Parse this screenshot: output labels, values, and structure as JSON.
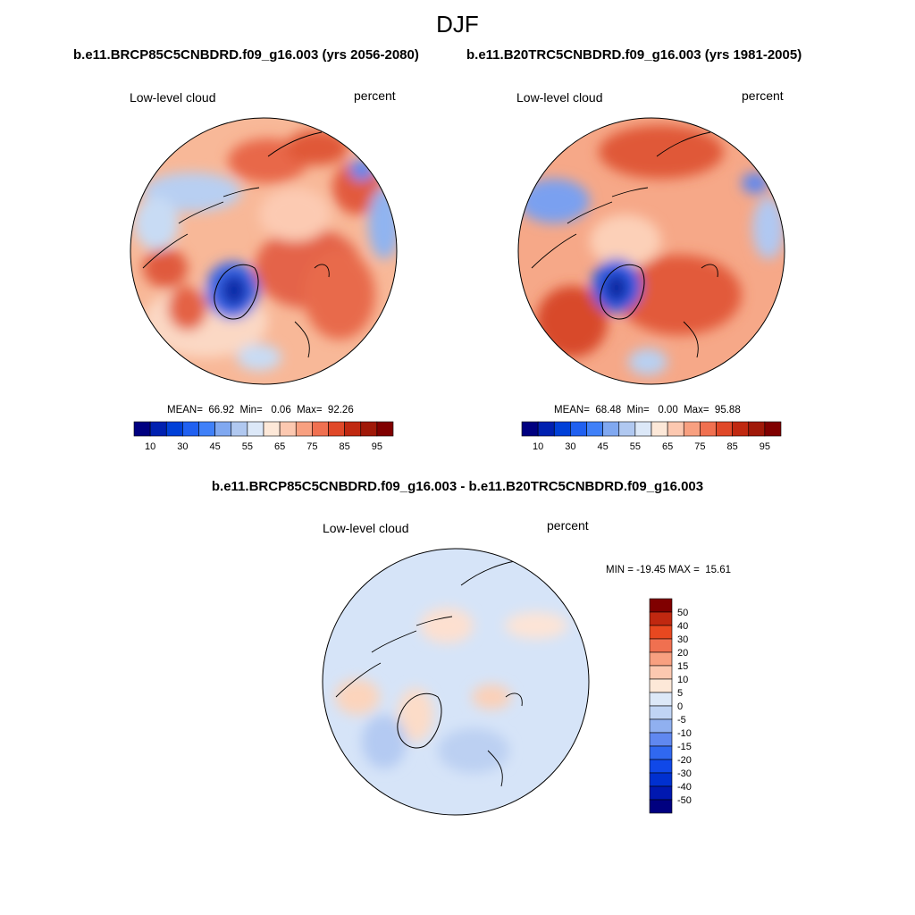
{
  "season": "DJF",
  "colors": {
    "abs_scale": [
      "#000080",
      "#0020b0",
      "#0040d8",
      "#2060f0",
      "#4080f8",
      "#80a8f0",
      "#b0c8f0",
      "#dce8f8",
      "#fde8d8",
      "#fcc8b0",
      "#f8a080",
      "#f07050",
      "#e04828",
      "#c02810",
      "#a01808",
      "#800000"
    ],
    "diff_scale": [
      "#000080",
      "#0018b0",
      "#0030d0",
      "#1048e8",
      "#3068f0",
      "#6088f0",
      "#90b0f0",
      "#c0d4f4",
      "#dce8f8",
      "#fde8d8",
      "#fcc8b0",
      "#f8a080",
      "#f07050",
      "#e84820",
      "#c02810",
      "#800000"
    ]
  },
  "panels": [
    {
      "id": "future",
      "case_title": "b.e11.BRCP85C5CNBDRD.f09_g16.003 (yrs 2056-2080)",
      "variable": "Low-level cloud",
      "units": "percent",
      "stats": {
        "mean": "66.92",
        "min": "0.06",
        "max": "92.26"
      },
      "stats_text": "MEAN=  66.92  Min=   0.06  Max=  92.26"
    },
    {
      "id": "historical",
      "case_title": "b.e11.B20TRC5CNBDRD.f09_g16.003 (yrs 1981-2005)",
      "variable": "Low-level cloud",
      "units": "percent",
      "stats": {
        "mean": "68.48",
        "min": "0.00",
        "max": "95.88"
      },
      "stats_text": "MEAN=  68.48  Min=   0.00  Max=  95.88"
    },
    {
      "id": "difference",
      "case_title": "b.e11.BRCP85C5CNBDRD.f09_g16.003 - b.e11.B20TRC5CNBDRD.f09_g16.003",
      "variable": "Low-level cloud",
      "units": "percent",
      "stats": {
        "min": "-19.45",
        "max": "15.61"
      },
      "stats_text": "MIN = -19.45 MAX =  15.61"
    }
  ],
  "chart_data": [
    {
      "type": "heatmap",
      "projection": "north-polar-stereographic",
      "title": "b.e11.BRCP85C5CNBDRD.f09_g16.003 (yrs 2056-2080)",
      "left_label": "Low-level cloud",
      "right_label": "percent",
      "colorbar": {
        "orientation": "horizontal",
        "tick_labels": [
          "10",
          "30",
          "45",
          "55",
          "65",
          "75",
          "85",
          "95"
        ],
        "levels": [
          5,
          10,
          20,
          30,
          40,
          45,
          50,
          55,
          60,
          65,
          70,
          75,
          80,
          85,
          90,
          95
        ],
        "units": "percent"
      },
      "summary": {
        "mean": 66.92,
        "min": 0.06,
        "max": 92.26
      }
    },
    {
      "type": "heatmap",
      "projection": "north-polar-stereographic",
      "title": "b.e11.B20TRC5CNBDRD.f09_g16.003 (yrs 1981-2005)",
      "left_label": "Low-level cloud",
      "right_label": "percent",
      "colorbar": {
        "orientation": "horizontal",
        "tick_labels": [
          "10",
          "30",
          "45",
          "55",
          "65",
          "75",
          "85",
          "95"
        ],
        "levels": [
          5,
          10,
          20,
          30,
          40,
          45,
          50,
          55,
          60,
          65,
          70,
          75,
          80,
          85,
          90,
          95
        ],
        "units": "percent"
      },
      "summary": {
        "mean": 68.48,
        "min": 0.0,
        "max": 95.88
      }
    },
    {
      "type": "heatmap",
      "projection": "north-polar-stereographic",
      "title": "b.e11.BRCP85C5CNBDRD.f09_g16.003 - b.e11.B20TRC5CNBDRD.f09_g16.003",
      "left_label": "Low-level cloud",
      "right_label": "percent",
      "colorbar": {
        "orientation": "vertical",
        "tick_labels": [
          "50",
          "40",
          "30",
          "20",
          "15",
          "10",
          "5",
          "0",
          "-5",
          "-10",
          "-15",
          "-20",
          "-30",
          "-40",
          "-50"
        ],
        "units": "percent"
      },
      "summary": {
        "min": -19.45,
        "max": 15.61
      }
    }
  ]
}
